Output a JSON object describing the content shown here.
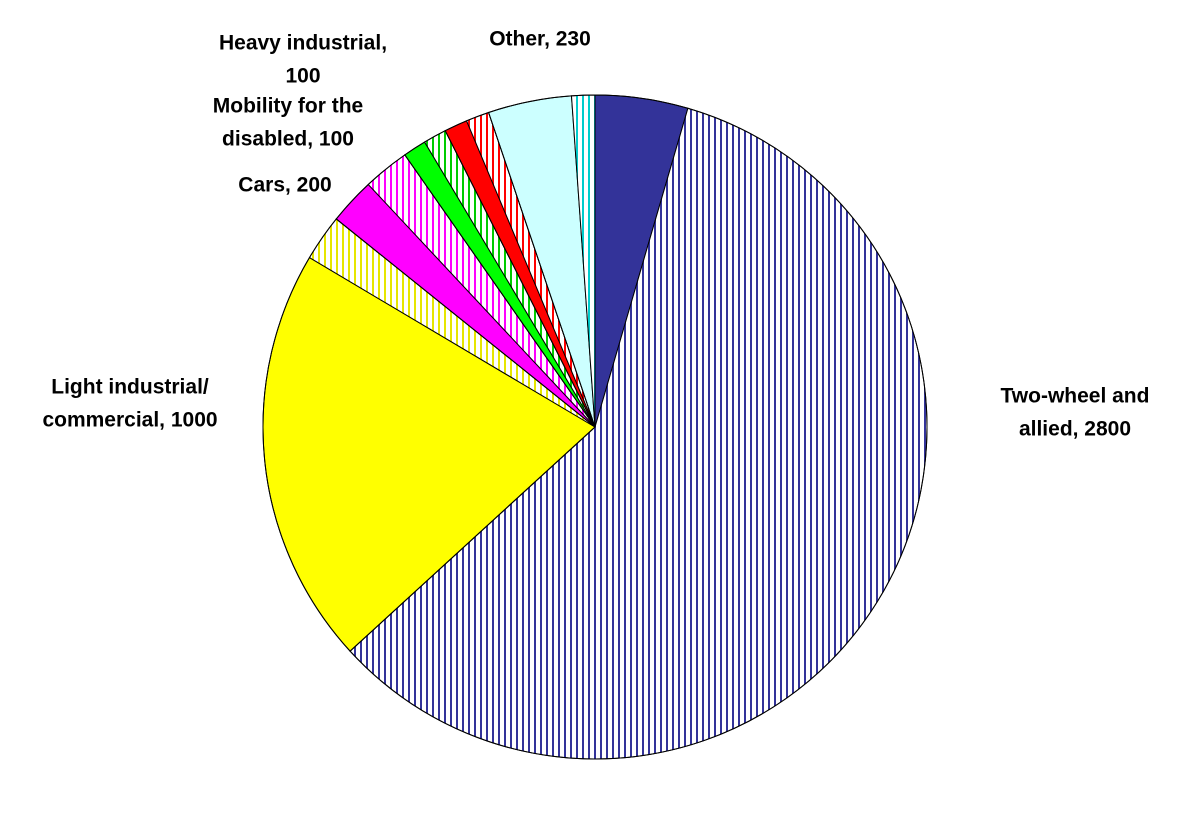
{
  "chart_data": {
    "type": "pie",
    "labels": [
      [
        "Two-wheel and",
        "allied, 2800"
      ],
      [
        "Light industrial/",
        "commercial, 1000"
      ],
      [
        "Cars, 200"
      ],
      [
        "Mobility for the",
        "disabled, 100"
      ],
      [
        "Heavy industrial,",
        "100"
      ],
      [
        "Other, 230"
      ]
    ],
    "values": [
      2800,
      1000,
      200,
      100,
      100,
      230
    ],
    "colors": [
      "#333399",
      "#ffff00",
      "#ff00ff",
      "#00ff00",
      "#ff0000",
      "#ccffff"
    ],
    "stripe_colors": [
      "#333399",
      "#e6e600",
      "#ff00ff",
      "#00cc00",
      "#ff0000",
      "#00cccc"
    ],
    "series": [
      {
        "fill": "solid",
        "values": [
          200,
          900,
          100,
          50,
          50,
          180
        ]
      },
      {
        "fill": "stripes",
        "values": [
          2600,
          100,
          100,
          50,
          50,
          50
        ]
      }
    ]
  }
}
